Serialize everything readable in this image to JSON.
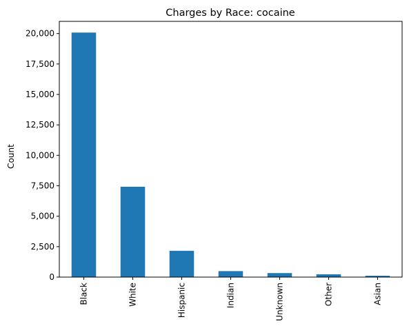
{
  "chart_data": {
    "type": "bar",
    "title": "Charges by Race: cocaine",
    "xlabel": "",
    "ylabel": "Count",
    "categories": [
      "Black",
      "White",
      "Hispanic",
      "Indian",
      "Unknown",
      "Other",
      "Asian"
    ],
    "values": [
      20080,
      7420,
      2160,
      490,
      330,
      230,
      110
    ],
    "ylim": [
      0,
      21000
    ],
    "yticks": [
      0,
      2500,
      5000,
      7500,
      10000,
      12500,
      15000,
      17500,
      20000
    ],
    "ytick_labels": [
      "0",
      "2,500",
      "5,000",
      "7,500",
      "10,000",
      "12,500",
      "15,000",
      "17,500",
      "20,000"
    ],
    "bar_color": "#1f77b4",
    "grid": false,
    "legend": "none"
  }
}
